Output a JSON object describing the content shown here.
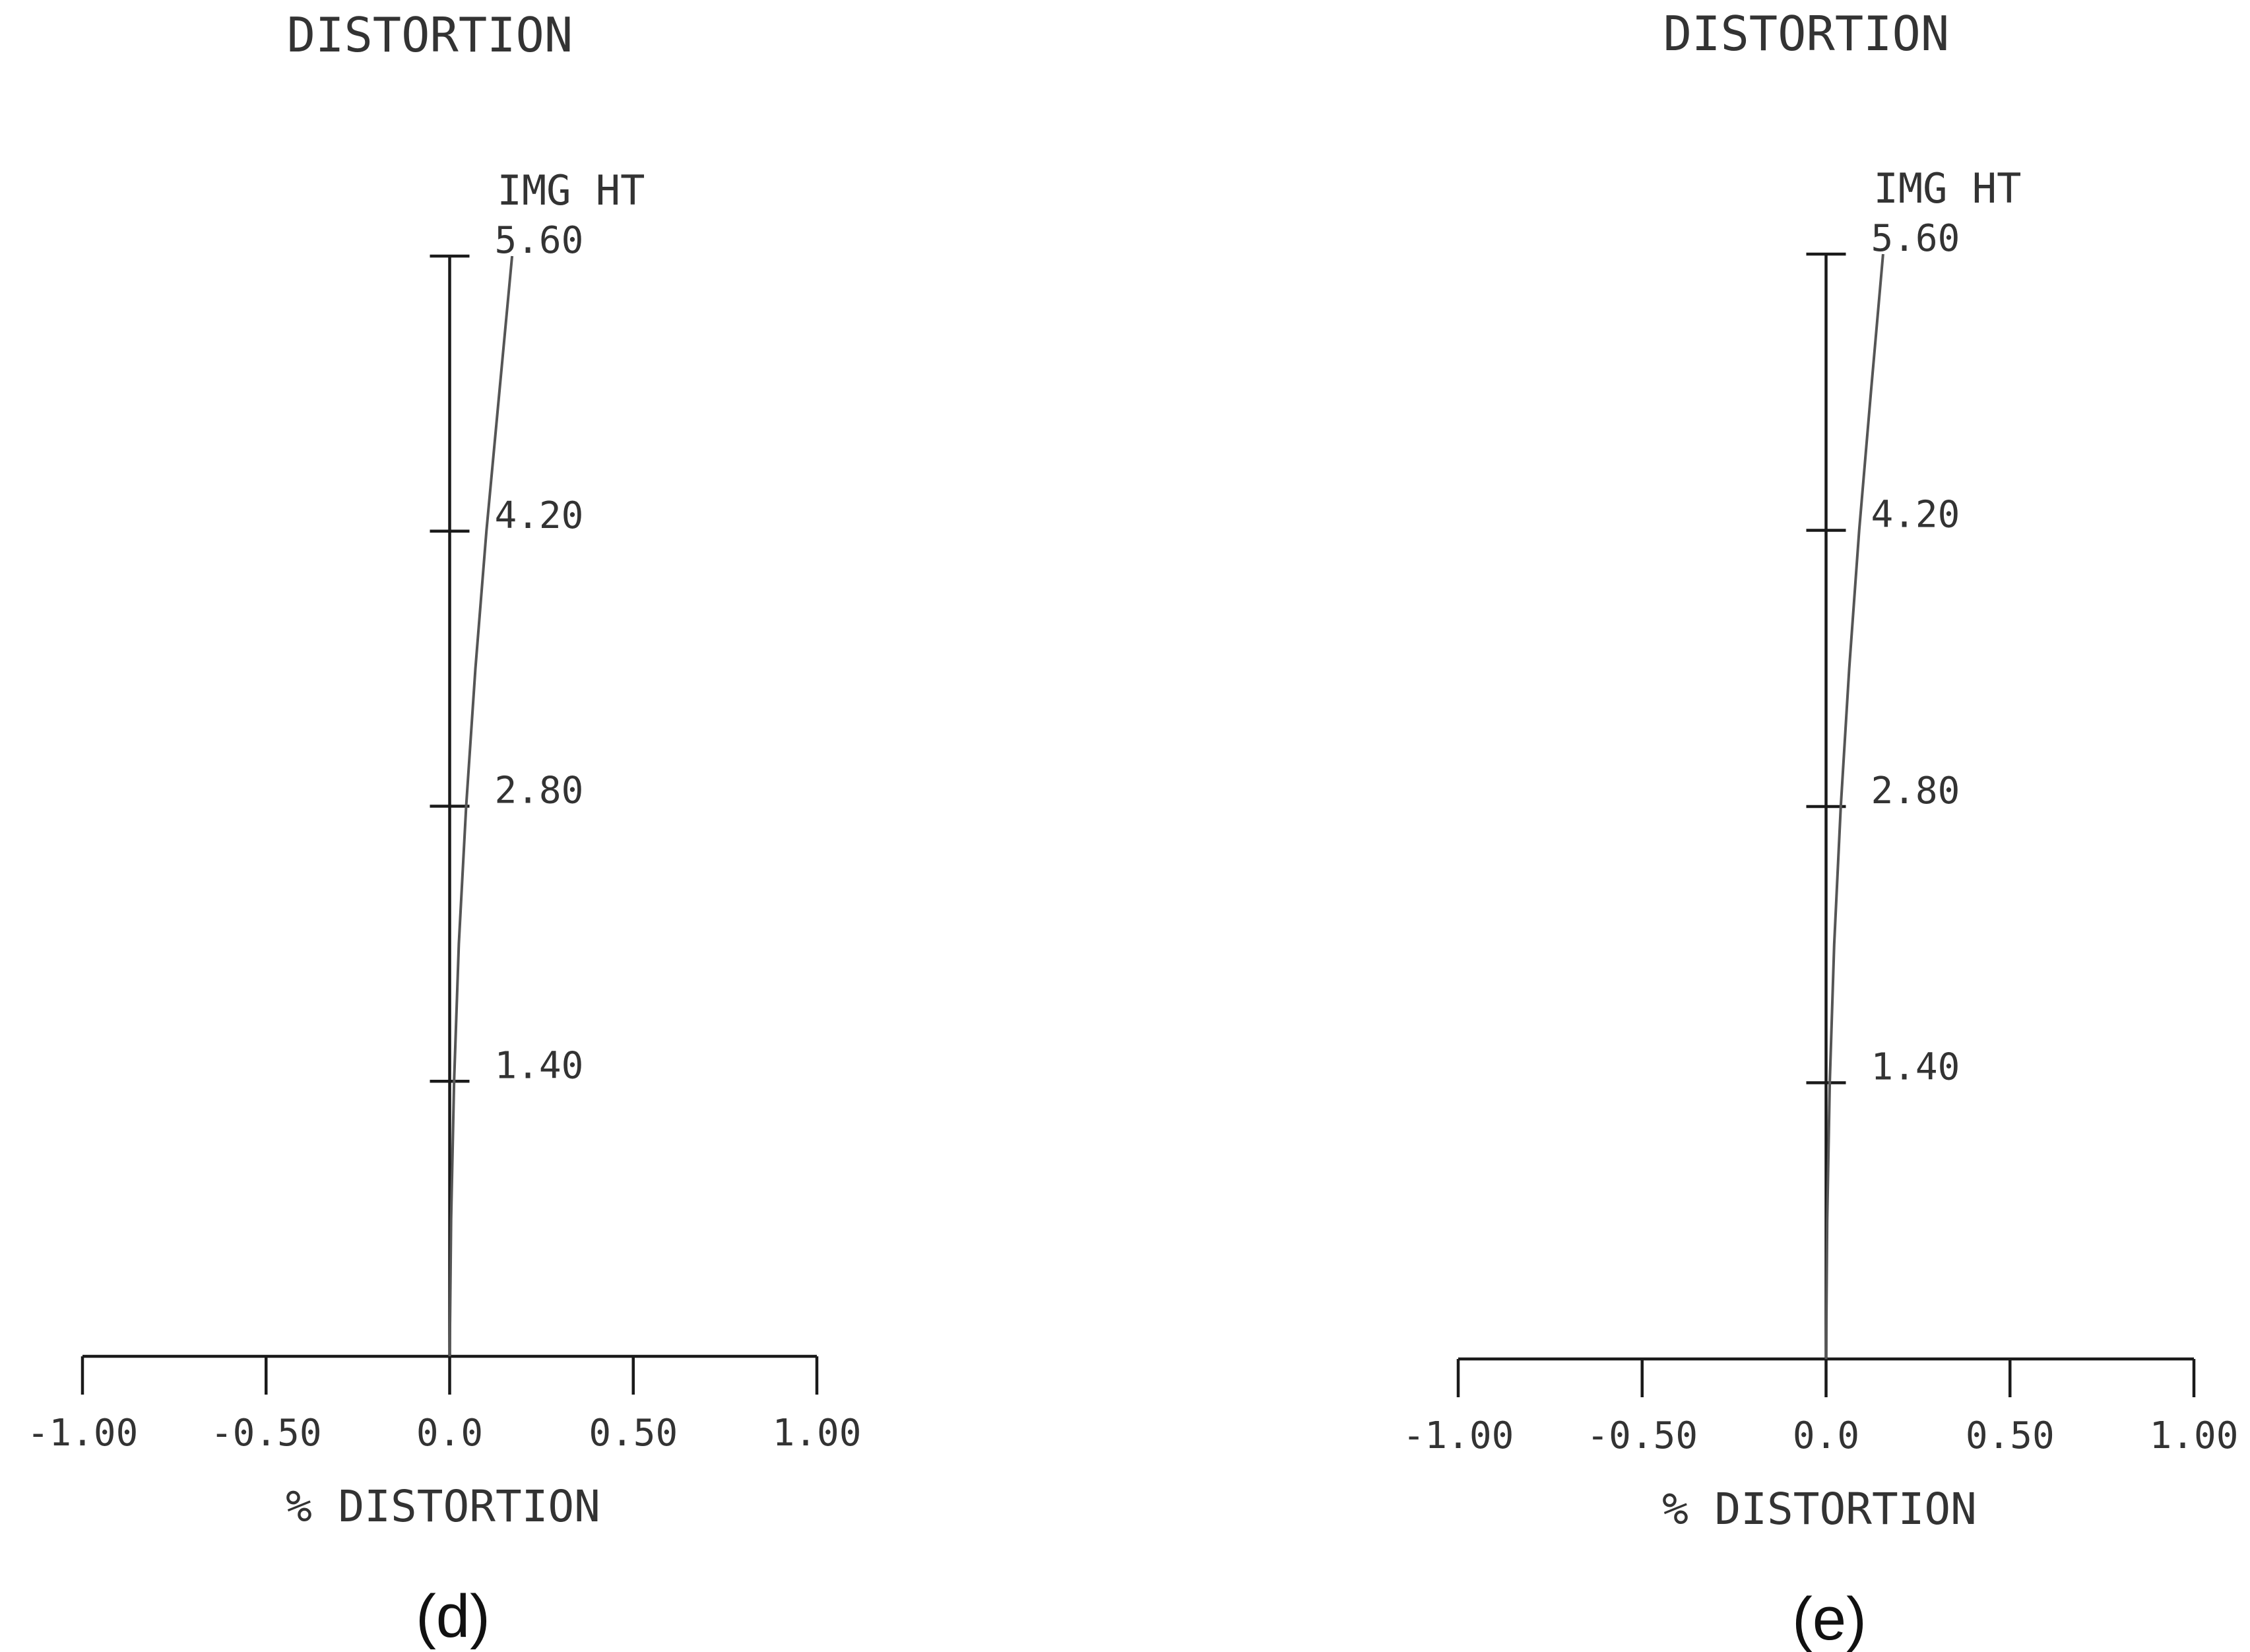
{
  "chart_data": [
    {
      "type": "line",
      "panel_label": "(d)",
      "title": "DISTORTION",
      "ylabel": "IMG HT",
      "xlabel": "% DISTORTION",
      "xlim": [
        -1.0,
        1.0
      ],
      "ylim": [
        0,
        5.6
      ],
      "x_ticks": [
        -1.0,
        -0.5,
        0.0,
        0.5,
        1.0
      ],
      "x_tick_labels": [
        "-1.00",
        "-0.50",
        "0.0",
        "0.50",
        "1.00"
      ],
      "y_ticks": [
        1.4,
        2.8,
        4.2,
        5.6
      ],
      "y_tick_labels": [
        "1.40",
        "2.80",
        "4.20",
        "5.60"
      ],
      "series": [
        {
          "x": [
            0.0,
            0.004,
            0.012,
            0.025,
            0.045,
            0.07,
            0.1,
            0.135,
            0.17
          ],
          "y": [
            0.0,
            0.7,
            1.4,
            2.1,
            2.8,
            3.5,
            4.2,
            4.9,
            5.6
          ]
        }
      ]
    },
    {
      "type": "line",
      "panel_label": "(e)",
      "title": "DISTORTION",
      "ylabel": "IMG HT",
      "xlabel": "% DISTORTION",
      "xlim": [
        -1.0,
        1.0
      ],
      "ylim": [
        0,
        5.6
      ],
      "x_ticks": [
        -1.0,
        -0.5,
        0.0,
        0.5,
        1.0
      ],
      "x_tick_labels": [
        "-1.00",
        "-0.50",
        "0.0",
        "0.50",
        "1.00"
      ],
      "y_ticks": [
        1.4,
        2.8,
        4.2,
        5.6
      ],
      "y_tick_labels": [
        "1.40",
        "2.80",
        "4.20",
        "5.60"
      ],
      "series": [
        {
          "x": [
            0.0,
            0.003,
            0.01,
            0.022,
            0.04,
            0.063,
            0.09,
            0.122,
            0.155
          ],
          "y": [
            0.0,
            0.7,
            1.4,
            2.1,
            2.8,
            3.5,
            4.2,
            4.9,
            5.6
          ]
        }
      ]
    }
  ]
}
